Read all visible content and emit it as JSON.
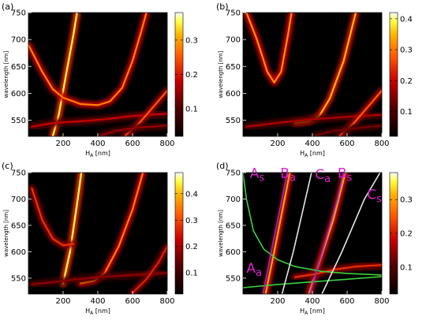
{
  "chart_data": [
    {
      "panel_label": "(a)",
      "type": "heatmap",
      "xlabel": "H",
      "xlabel_sub": "A",
      "xlabel_unit": "[nm]",
      "ylabel": "wavelength [nm]",
      "xlim": [
        0,
        800
      ],
      "ylim": [
        520,
        750
      ],
      "xticks": [
        200,
        400,
        600,
        800
      ],
      "yticks": [
        550,
        600,
        650,
        700,
        750
      ],
      "colorbar": {
        "range": [
          0.02,
          0.38
        ],
        "ticks": [
          0.1,
          0.2,
          0.3
        ]
      },
      "bands": [
        {
          "points": [
            [
              140,
              520
            ],
            [
              175,
              560
            ],
            [
              220,
              640
            ],
            [
              260,
              710
            ],
            [
              280,
              750
            ]
          ],
          "intensity": 0.35
        },
        {
          "points": [
            [
              0,
              690
            ],
            [
              80,
              640
            ],
            [
              140,
              608
            ],
            [
              200,
              592
            ],
            [
              300,
              580
            ],
            [
              400,
              578
            ],
            [
              470,
              585
            ],
            [
              540,
              610
            ],
            [
              600,
              660
            ],
            [
              650,
              715
            ],
            [
              680,
              750
            ]
          ],
          "intensity": 0.28
        },
        {
          "points": [
            [
              20,
              538
            ],
            [
              150,
              545
            ],
            [
              300,
              548
            ],
            [
              450,
              552
            ],
            [
              600,
              558
            ],
            [
              800,
              562
            ]
          ],
          "intensity": 0.18
        },
        {
          "points": [
            [
              560,
              522
            ],
            [
              640,
              545
            ],
            [
              720,
              575
            ],
            [
              800,
              605
            ]
          ],
          "intensity": 0.25
        },
        {
          "points": [
            [
              420,
              522
            ],
            [
              500,
              530
            ],
            [
              620,
              536
            ],
            [
              800,
              540
            ]
          ],
          "intensity": 0.15
        }
      ]
    },
    {
      "panel_label": "(b)",
      "type": "heatmap",
      "xlabel": "H",
      "xlabel_sub": "A",
      "xlabel_unit": "[nm]",
      "ylabel": "wavelength [nm]",
      "xlim": [
        0,
        800
      ],
      "ylim": [
        520,
        750
      ],
      "xticks": [
        200,
        400,
        600,
        800
      ],
      "yticks": [
        550,
        600,
        650,
        700,
        750
      ],
      "colorbar": {
        "range": [
          0.02,
          0.42
        ],
        "ticks": [
          0.1,
          0.2,
          0.3,
          0.4
        ]
      },
      "bands": [
        {
          "points": [
            [
              20,
              750
            ],
            [
              80,
              700
            ],
            [
              140,
              640
            ],
            [
              180,
              620
            ],
            [
              220,
              640
            ],
            [
              260,
              710
            ],
            [
              280,
              750
            ]
          ],
          "intensity": 0.32
        },
        {
          "points": [
            [
              300,
              545
            ],
            [
              380,
              548
            ],
            [
              440,
              558
            ],
            [
              500,
              590
            ],
            [
              580,
              660
            ],
            [
              650,
              750
            ]
          ],
          "intensity": 0.35
        },
        {
          "points": [
            [
              20,
              538
            ],
            [
              200,
              545
            ],
            [
              400,
              552
            ],
            [
              600,
              556
            ],
            [
              800,
              560
            ]
          ],
          "intensity": 0.18
        },
        {
          "points": [
            [
              560,
              522
            ],
            [
              640,
              545
            ],
            [
              720,
              575
            ],
            [
              800,
              605
            ]
          ],
          "intensity": 0.28
        },
        {
          "points": [
            [
              420,
              522
            ],
            [
              520,
              530
            ],
            [
              650,
              535
            ],
            [
              800,
              540
            ]
          ],
          "intensity": 0.14
        }
      ]
    },
    {
      "panel_label": "(c)",
      "type": "heatmap",
      "xlabel": "H",
      "xlabel_sub": "A",
      "xlabel_unit": "[nm]",
      "ylabel": "wavelength [nm]",
      "xlim": [
        0,
        800
      ],
      "ylim": [
        520,
        750
      ],
      "xticks": [
        200,
        400,
        600,
        800
      ],
      "yticks": [
        550,
        600,
        650,
        700,
        750
      ],
      "colorbar": {
        "range": [
          0.02,
          0.48
        ],
        "ticks": [
          0.1,
          0.2,
          0.3,
          0.4
        ]
      },
      "bands": [
        {
          "points": [
            [
              200,
              540
            ],
            [
              240,
              600
            ],
            [
              280,
              690
            ],
            [
              305,
              750
            ]
          ],
          "intensity": 0.45
        },
        {
          "points": [
            [
              20,
              720
            ],
            [
              80,
              660
            ],
            [
              140,
              625
            ],
            [
              200,
              612
            ],
            [
              260,
              615
            ]
          ],
          "intensity": 0.28
        },
        {
          "points": [
            [
              300,
              540
            ],
            [
              380,
              545
            ],
            [
              440,
              560
            ],
            [
              520,
              610
            ],
            [
              600,
              680
            ],
            [
              660,
              750
            ]
          ],
          "intensity": 0.35
        },
        {
          "points": [
            [
              20,
              538
            ],
            [
              200,
              545
            ],
            [
              400,
              552
            ],
            [
              600,
              556
            ],
            [
              800,
              560
            ]
          ],
          "intensity": 0.18
        },
        {
          "points": [
            [
              600,
              522
            ],
            [
              680,
              548
            ],
            [
              750,
              580
            ],
            [
              800,
              610
            ]
          ],
          "intensity": 0.26
        }
      ]
    },
    {
      "panel_label": "(d)",
      "type": "heatmap",
      "xlabel": "H",
      "xlabel_sub": "A",
      "xlabel_unit": "[nm]",
      "ylabel": "wavelength [nm]",
      "xlim": [
        0,
        800
      ],
      "ylim": [
        520,
        750
      ],
      "xticks": [
        200,
        400,
        600,
        800
      ],
      "yticks": [
        550,
        600,
        650,
        700,
        750
      ],
      "colorbar": {
        "range": [
          0.02,
          0.38
        ],
        "ticks": [
          0.1,
          0.2,
          0.3
        ]
      },
      "bands": [
        {
          "points": [
            [
              130,
              520
            ],
            [
              180,
              600
            ],
            [
              240,
              700
            ],
            [
              270,
              750
            ]
          ],
          "intensity": 0.3
        },
        {
          "points": [
            [
              380,
              520
            ],
            [
              440,
              580
            ],
            [
              520,
              660
            ],
            [
              590,
              750
            ]
          ],
          "intensity": 0.3
        },
        {
          "points": [
            [
              300,
              552
            ],
            [
              420,
              558
            ],
            [
              520,
              566
            ],
            [
              650,
              572
            ],
            [
              800,
              575
            ]
          ],
          "intensity": 0.22
        }
      ],
      "overlay_curves": [
        {
          "color": "#3cd23c",
          "points": [
            [
              0,
              750
            ],
            [
              20,
              700
            ],
            [
              60,
              640
            ],
            [
              120,
              605
            ],
            [
              200,
              585
            ],
            [
              300,
              572
            ],
            [
              450,
              563
            ],
            [
              600,
              559
            ],
            [
              800,
              556
            ]
          ]
        },
        {
          "color": "#3cd23c",
          "points": [
            [
              0,
              532
            ],
            [
              200,
              538
            ],
            [
              400,
              543
            ],
            [
              600,
              548
            ],
            [
              800,
              553
            ]
          ]
        },
        {
          "color": "#8a2be2",
          "points": [
            [
              115,
              520
            ],
            [
              175,
              620
            ],
            [
              225,
              700
            ],
            [
              255,
              750
            ]
          ]
        },
        {
          "color": "#8a2be2",
          "points": [
            [
              385,
              520
            ],
            [
              475,
              620
            ],
            [
              545,
              700
            ],
            [
              580,
              750
            ]
          ]
        },
        {
          "color": "#e6e6e6",
          "points": [
            [
              225,
              520
            ],
            [
              290,
              600
            ],
            [
              360,
              700
            ],
            [
              395,
              750
            ]
          ]
        },
        {
          "color": "#e6e6e6",
          "points": [
            [
              455,
              520
            ],
            [
              570,
              600
            ],
            [
              700,
              700
            ],
            [
              790,
              750
            ]
          ]
        }
      ],
      "annotations": [
        {
          "text": "A",
          "sub": "s",
          "at": [
            40,
            740
          ]
        },
        {
          "text": "B",
          "sub": "a",
          "at": [
            215,
            740
          ]
        },
        {
          "text": "C",
          "sub": "a",
          "at": [
            415,
            738
          ]
        },
        {
          "text": "B",
          "sub": "s",
          "at": [
            545,
            740
          ]
        },
        {
          "text": "C",
          "sub": "s",
          "at": [
            715,
            700
          ]
        },
        {
          "text": "A",
          "sub": "a",
          "at": [
            20,
            560
          ]
        }
      ],
      "annotation_color": "#e020d0"
    }
  ]
}
